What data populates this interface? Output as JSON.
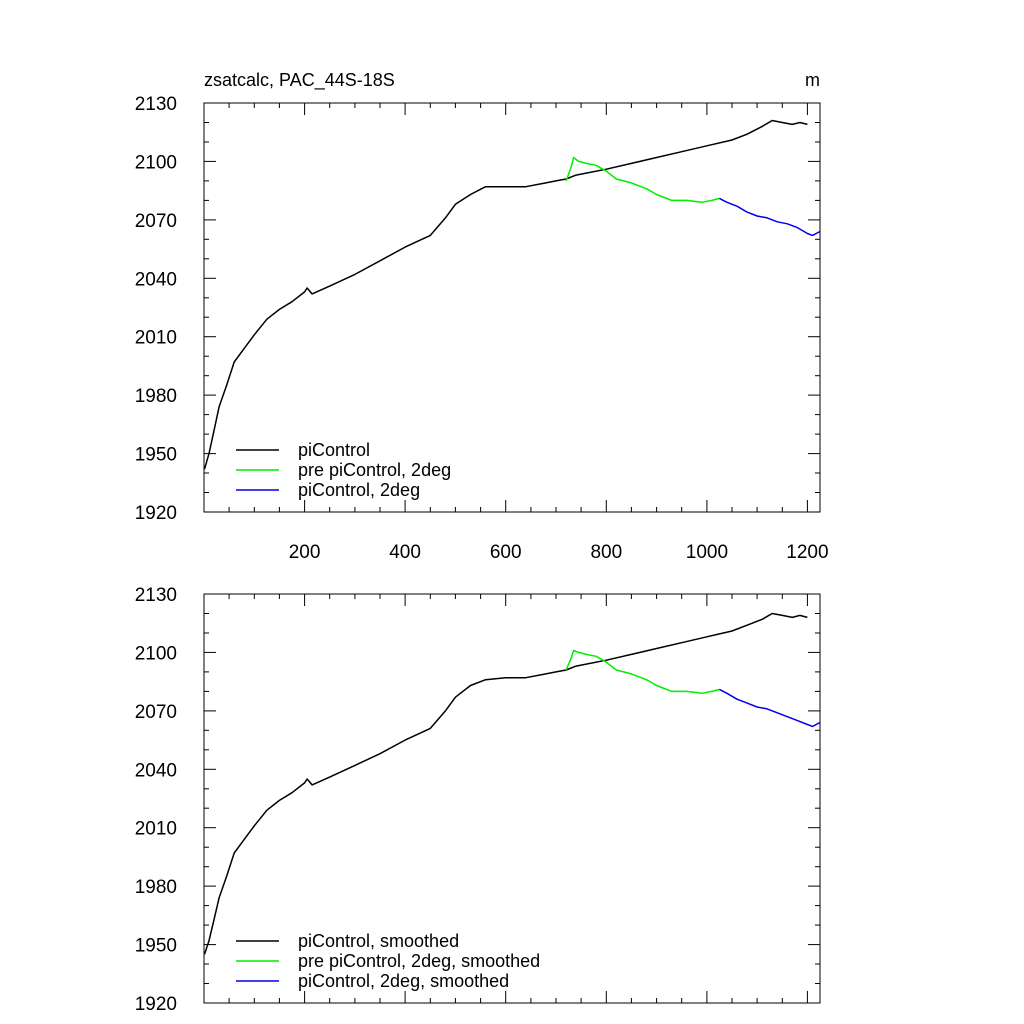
{
  "chart_data": [
    {
      "type": "line",
      "title": "zsatcalc, PAC_44S-18S",
      "units": "m",
      "xlabel": "",
      "ylabel": "",
      "xlim": [
        0,
        1225
      ],
      "ylim": [
        1920,
        2130
      ],
      "xticks": [
        200,
        400,
        600,
        800,
        1000,
        1200
      ],
      "yticks": [
        1920,
        1950,
        1980,
        2010,
        2040,
        2070,
        2100,
        2130
      ],
      "show_x_tick_labels": true,
      "grid": false,
      "legend_position": "bottom-left",
      "series": [
        {
          "name": "piControl",
          "color": "#000000",
          "x": [
            1,
            10,
            20,
            30,
            45,
            60,
            80,
            100,
            125,
            150,
            175,
            200,
            205,
            215,
            250,
            300,
            350,
            400,
            450,
            480,
            500,
            530,
            560,
            600,
            640,
            680,
            700,
            720,
            740,
            760,
            800,
            850,
            900,
            950,
            1000,
            1050,
            1080,
            1110,
            1130,
            1150,
            1170,
            1185,
            1200
          ],
          "y": [
            1942,
            1950,
            1962,
            1974,
            1985,
            1997,
            2004,
            2011,
            2019,
            2024,
            2028,
            2033,
            2035,
            2032,
            2036,
            2042,
            2049,
            2056,
            2062,
            2071,
            2078,
            2083,
            2087,
            2087,
            2087,
            2089,
            2090,
            2091,
            2093,
            2094,
            2096,
            2099,
            2102,
            2105,
            2108,
            2111,
            2114,
            2118,
            2121,
            2120,
            2119,
            2120,
            2119
          ]
        },
        {
          "name": "pre piControl, 2deg",
          "color": "#00ee00",
          "x": [
            720,
            730,
            735,
            745,
            760,
            780,
            800,
            820,
            850,
            880,
            900,
            930,
            960,
            990,
            1010,
            1025
          ],
          "y": [
            2090,
            2097,
            2102,
            2100,
            2099,
            2098,
            2095,
            2091,
            2089,
            2086,
            2083,
            2080,
            2080,
            2079,
            2080,
            2081
          ]
        },
        {
          "name": "piControl, 2deg",
          "color": "#0000ee",
          "x": [
            1025,
            1040,
            1060,
            1080,
            1100,
            1120,
            1140,
            1160,
            1180,
            1200,
            1210,
            1225
          ],
          "y": [
            2081,
            2079,
            2077,
            2074,
            2072,
            2071,
            2069,
            2068,
            2066,
            2063,
            2062,
            2064
          ]
        }
      ]
    },
    {
      "type": "line",
      "title": "",
      "units": "",
      "xlabel": "",
      "ylabel": "",
      "xlim": [
        0,
        1225
      ],
      "ylim": [
        1920,
        2130
      ],
      "xticks": [
        200,
        400,
        600,
        800,
        1000,
        1200
      ],
      "yticks": [
        1920,
        1950,
        1980,
        2010,
        2040,
        2070,
        2100,
        2130
      ],
      "show_x_tick_labels": false,
      "grid": false,
      "legend_position": "bottom-left",
      "series": [
        {
          "name": "piControl, smoothed",
          "color": "#000000",
          "x": [
            1,
            10,
            20,
            30,
            45,
            60,
            80,
            100,
            125,
            150,
            175,
            200,
            205,
            215,
            250,
            300,
            350,
            400,
            450,
            480,
            500,
            530,
            560,
            600,
            640,
            680,
            700,
            720,
            740,
            760,
            800,
            850,
            900,
            950,
            1000,
            1050,
            1080,
            1110,
            1130,
            1150,
            1170,
            1185,
            1200
          ],
          "y": [
            1945,
            1952,
            1963,
            1974,
            1985,
            1997,
            2004,
            2011,
            2019,
            2024,
            2028,
            2033,
            2035,
            2032,
            2036,
            2042,
            2048,
            2055,
            2061,
            2070,
            2077,
            2083,
            2086,
            2087,
            2087,
            2089,
            2090,
            2091,
            2093,
            2094,
            2096,
            2099,
            2102,
            2105,
            2108,
            2111,
            2114,
            2117,
            2120,
            2119,
            2118,
            2119,
            2118
          ]
        },
        {
          "name": "pre piControl, 2deg, smoothed",
          "color": "#00ee00",
          "x": [
            720,
            730,
            735,
            745,
            760,
            780,
            800,
            820,
            850,
            880,
            900,
            930,
            960,
            990,
            1010,
            1025
          ],
          "y": [
            2091,
            2097,
            2101,
            2100,
            2099,
            2098,
            2095,
            2091,
            2089,
            2086,
            2083,
            2080,
            2080,
            2079,
            2080,
            2081
          ]
        },
        {
          "name": "piControl, 2deg, smoothed",
          "color": "#0000ee",
          "x": [
            1025,
            1040,
            1060,
            1080,
            1100,
            1120,
            1140,
            1160,
            1180,
            1200,
            1210,
            1225
          ],
          "y": [
            2081,
            2079,
            2076,
            2074,
            2072,
            2071,
            2069,
            2067,
            2065,
            2063,
            2062,
            2064
          ]
        }
      ]
    }
  ]
}
